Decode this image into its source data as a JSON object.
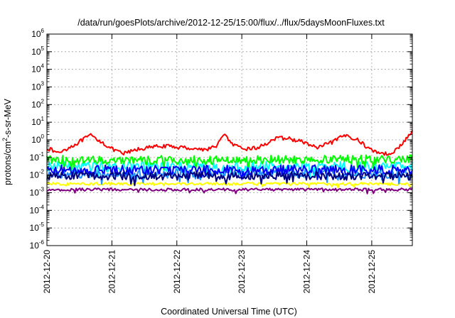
{
  "chart_data": {
    "type": "line",
    "title": "/data/run/goesPlots/archive/2012-12-25/15:00/flux/../flux/5daysMoonFluxes.txt",
    "xlabel": "Coordinated Universal Time (UTC)",
    "ylabel": "protons/cm²-s-sr-MeV",
    "x_scale": "date",
    "x_range": [
      "2012-12-20 00:00",
      "2012-12-25 15:00"
    ],
    "x_ticks": [
      "2012-12-20",
      "2012-12-21",
      "2012-12-22",
      "2012-12-23",
      "2012-12-24",
      "2012-12-25"
    ],
    "y_scale": "log",
    "ylim": [
      1e-06,
      1000000.0
    ],
    "y_ticks": [
      {
        "base": "10",
        "exp": "6"
      },
      {
        "base": "10",
        "exp": "5"
      },
      {
        "base": "10",
        "exp": "4"
      },
      {
        "base": "10",
        "exp": "3"
      },
      {
        "base": "10",
        "exp": "2"
      },
      {
        "base": "10",
        "exp": "1"
      },
      {
        "base": "10",
        "exp": "0"
      },
      {
        "base": "10",
        "exp": "-1"
      },
      {
        "base": "10",
        "exp": "-2"
      },
      {
        "base": "10",
        "exp": "-3"
      },
      {
        "base": "10",
        "exp": "-4"
      },
      {
        "base": "10",
        "exp": "-5"
      },
      {
        "base": "10",
        "exp": "-6"
      }
    ],
    "grid": true,
    "legend": "none",
    "series": [
      {
        "color": "#ff0000",
        "base": [
          [
            "2012-12-20 00:00",
            0.35
          ],
          [
            "2012-12-20 04:00",
            0.18
          ],
          [
            "2012-12-20 10:00",
            0.5
          ],
          [
            "2012-12-20 16:00",
            1.8
          ],
          [
            "2012-12-20 20:00",
            0.8
          ],
          [
            "2012-12-21 00:00",
            0.3
          ],
          [
            "2012-12-21 04:00",
            0.16
          ],
          [
            "2012-12-21 10:00",
            0.3
          ],
          [
            "2012-12-21 18:00",
            0.45
          ],
          [
            "2012-12-22 04:00",
            0.35
          ],
          [
            "2012-12-22 10:00",
            0.28
          ],
          [
            "2012-12-22 14:00",
            0.38
          ],
          [
            "2012-12-22 18:00",
            2.2
          ],
          [
            "2012-12-22 20:00",
            0.6
          ],
          [
            "2012-12-23 00:00",
            0.3
          ],
          [
            "2012-12-23 06:00",
            0.35
          ],
          [
            "2012-12-23 12:00",
            1.1
          ],
          [
            "2012-12-23 16:00",
            1.3
          ],
          [
            "2012-12-23 22:00",
            0.8
          ],
          [
            "2012-12-24 04:00",
            0.35
          ],
          [
            "2012-12-24 10:00",
            0.8
          ],
          [
            "2012-12-24 14:00",
            1.8
          ],
          [
            "2012-12-24 18:00",
            1.2
          ],
          [
            "2012-12-25 00:00",
            0.25
          ],
          [
            "2012-12-25 06:00",
            0.15
          ],
          [
            "2012-12-25 10:00",
            0.35
          ],
          [
            "2012-12-25 15:00",
            3.0
          ]
        ]
      },
      {
        "color": "#00ff00",
        "base": [
          [
            "2012-12-20 00:00",
            0.07
          ],
          [
            "2012-12-22 12:00",
            0.07
          ],
          [
            "2012-12-25 15:00",
            0.08
          ]
        ]
      },
      {
        "color": "#00ffff",
        "base": [
          [
            "2012-12-20 00:00",
            0.03
          ],
          [
            "2012-12-22 12:00",
            0.03
          ],
          [
            "2012-12-25 15:00",
            0.03
          ]
        ]
      },
      {
        "color": "#0000ff",
        "base": [
          [
            "2012-12-20 00:00",
            0.02
          ],
          [
            "2012-12-22 12:00",
            0.02
          ],
          [
            "2012-12-25 15:00",
            0.02
          ]
        ]
      },
      {
        "color": "#1e90ff",
        "base": [
          [
            "2012-12-20 00:00",
            0.012
          ],
          [
            "2012-12-22 12:00",
            0.012
          ],
          [
            "2012-12-25 15:00",
            0.012
          ]
        ]
      },
      {
        "color": "#000080",
        "base": [
          [
            "2012-12-20 00:00",
            0.009
          ],
          [
            "2012-12-22 12:00",
            0.009
          ],
          [
            "2012-12-25 15:00",
            0.009
          ]
        ]
      },
      {
        "color": "#ffff00",
        "base": [
          [
            "2012-12-20 00:00",
            0.0032
          ],
          [
            "2012-12-22 12:00",
            0.0032
          ],
          [
            "2012-12-25 15:00",
            0.0032
          ]
        ]
      },
      {
        "color": "#800080",
        "base": [
          [
            "2012-12-20 00:00",
            0.0015
          ],
          [
            "2012-12-22 12:00",
            0.0015
          ],
          [
            "2012-12-25 15:00",
            0.0015
          ]
        ]
      }
    ]
  }
}
